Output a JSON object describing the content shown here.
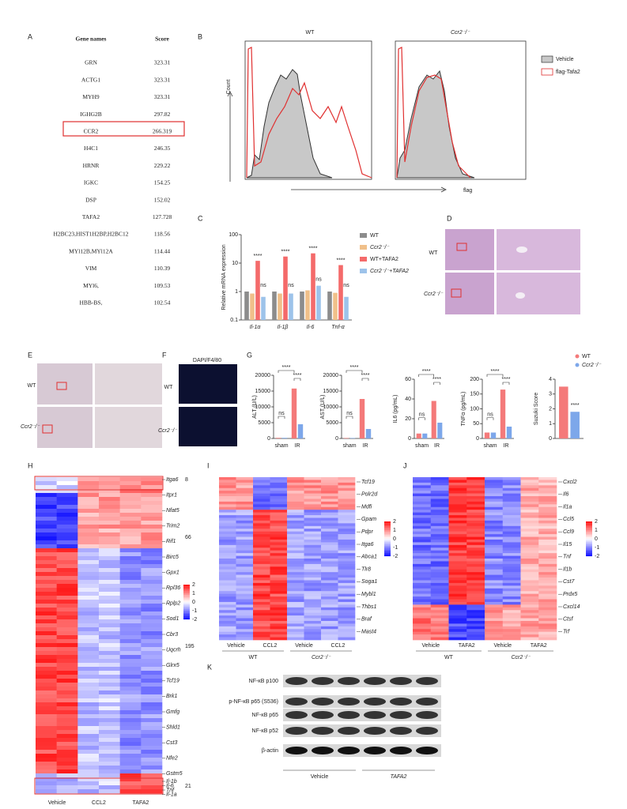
{
  "panel_labels": [
    "A",
    "B",
    "C",
    "D",
    "E",
    "F",
    "G",
    "H",
    "I",
    "J",
    "K"
  ],
  "table": {
    "header": [
      "Gene names",
      "Score"
    ],
    "rows": [
      [
        "GRN",
        "323.31"
      ],
      [
        "ACTG1",
        "323.31"
      ],
      [
        "MYH9",
        "323.31"
      ],
      [
        "IGHG2B",
        "297.82"
      ],
      [
        "CCR2",
        "266.319"
      ],
      [
        "H4C1",
        "246.35"
      ],
      [
        "HRNR",
        "229.22"
      ],
      [
        "IGKC",
        "154.25"
      ],
      [
        "DSP",
        "152.02"
      ],
      [
        "TAFA2",
        "127.728"
      ],
      [
        "H2BC23,HIST1H2BP,H2BC12",
        "118.56"
      ],
      [
        "MYl12B,MYl12A",
        "114.44"
      ],
      [
        "VIM",
        "110.39"
      ],
      [
        "MYl6,",
        "109.53"
      ],
      [
        "HBB-BS,",
        "102.54"
      ]
    ]
  },
  "panel_b": {
    "titles": [
      "WT",
      "Ccr2⁻/⁻"
    ],
    "y_label": "Count",
    "x_label": "flag",
    "legend": [
      "Vehicle",
      "flag-Tafa2"
    ]
  },
  "panel_d": {
    "rows": [
      "WT",
      "Ccr2⁻/⁻"
    ]
  },
  "panel_e": {
    "rows": [
      "WT",
      "Ccr2⁻/⁻"
    ]
  },
  "panel_f": {
    "stain": "DAPI/F4/80",
    "rows": [
      "WT",
      "Ccr2⁻/⁻"
    ]
  },
  "chart_data": [
    {
      "type": "bar",
      "y_label": "Relative mRNA expression",
      "log": true,
      "ylim": [
        0.1,
        100
      ],
      "yticks": [
        0.1,
        1,
        10,
        100
      ],
      "categories": [
        "Il-1α",
        "Il-1β",
        "Il-6",
        "Tnf-α"
      ],
      "series": [
        {
          "name": "WT",
          "color": "#8c8c8c",
          "values": [
            1,
            1,
            1,
            1
          ]
        },
        {
          "name": "Ccr2⁻/⁻",
          "color": "#f0c08a",
          "values": [
            0.85,
            0.85,
            1.1,
            0.9
          ]
        },
        {
          "name": "WT+TAFA2",
          "color": "#f46a6a",
          "values": [
            12,
            17,
            22,
            8.5
          ]
        },
        {
          "name": "Ccr2⁻/⁻+TAFA2",
          "color": "#9dc3ea",
          "values": [
            0.65,
            0.85,
            1.6,
            0.65
          ]
        }
      ],
      "annotations": [
        [
          "****",
          "ns"
        ],
        [
          "****",
          "ns"
        ],
        [
          "****",
          "ns"
        ],
        [
          "****",
          "ns"
        ]
      ]
    },
    {
      "type": "bar",
      "y_label": "ALT (U/L)",
      "ylim": [
        0,
        20000
      ],
      "yticks": [
        0,
        5000,
        10000,
        15000,
        20000
      ],
      "categories": [
        "sham",
        "IR"
      ],
      "series": [
        {
          "name": "WT",
          "color": "#f47a7a",
          "values": [
            200,
            15800
          ]
        },
        {
          "name": "Ccr2⁻/⁻",
          "color": "#7da7ea",
          "values": [
            200,
            4500
          ]
        }
      ],
      "annotations": [
        "ns",
        "****",
        "****"
      ]
    },
    {
      "type": "bar",
      "y_label": "AST (U/L)",
      "ylim": [
        0,
        20000
      ],
      "yticks": [
        0,
        5000,
        10000,
        15000,
        20000
      ],
      "categories": [
        "sham",
        "IR"
      ],
      "series": [
        {
          "name": "WT",
          "color": "#f47a7a",
          "values": [
            150,
            12500
          ]
        },
        {
          "name": "Ccr2⁻/⁻",
          "color": "#7da7ea",
          "values": [
            150,
            3000
          ]
        }
      ],
      "annotations": [
        "ns",
        "****",
        "****"
      ]
    },
    {
      "type": "bar",
      "y_label": "IL6 (pg/mL)",
      "ylim": [
        0,
        60
      ],
      "yticks": [
        0,
        20,
        40,
        60
      ],
      "categories": [
        "sham",
        "IR"
      ],
      "series": [
        {
          "name": "WT",
          "color": "#f47a7a",
          "values": [
            5,
            38
          ]
        },
        {
          "name": "Ccr2⁻/⁻",
          "color": "#7da7ea",
          "values": [
            5,
            16
          ]
        }
      ],
      "annotations": [
        "ns",
        "****",
        "****"
      ]
    },
    {
      "type": "bar",
      "y_label": "TNFα (pg/mL)",
      "ylim": [
        0,
        200
      ],
      "yticks": [
        0,
        50,
        100,
        150,
        200
      ],
      "categories": [
        "sham",
        "IR"
      ],
      "series": [
        {
          "name": "WT",
          "color": "#f47a7a",
          "values": [
            20,
            165
          ]
        },
        {
          "name": "Ccr2⁻/⁻",
          "color": "#7da7ea",
          "values": [
            20,
            40
          ]
        }
      ],
      "annotations": [
        "ns",
        "****",
        "****"
      ]
    },
    {
      "type": "bar",
      "y_label": "Suzuki Score",
      "ylim": [
        0,
        4
      ],
      "yticks": [
        0,
        1,
        2,
        3,
        4
      ],
      "categories": [
        null
      ],
      "series": [
        {
          "name": "WT",
          "color": "#f47a7a",
          "values": [
            3.5
          ]
        },
        {
          "name": "Ccr2⁻/⁻",
          "color": "#7da7ea",
          "values": [
            1.8
          ]
        }
      ],
      "annotations": [
        "****"
      ]
    }
  ],
  "panel_h": {
    "genes": [
      "Itga6",
      "Itpr1",
      "Nfat5",
      "Trim2",
      "Rif1",
      "Birc5",
      "Gpx1",
      "Rpl36",
      "Rplp2",
      "Sod1",
      "Cbr3",
      "Uqcrh",
      "Glrx5",
      "Tcf19",
      "Brk1",
      "Gmfg",
      "Shld1",
      "Cst3",
      "Nfe2",
      "Gstm5",
      "Il-1b",
      "Il-6",
      "Tnf",
      "Il-1a"
    ],
    "counts": [
      "8",
      "66",
      "195",
      "21"
    ],
    "columns": [
      "Vehicle",
      "CCL2",
      "TAFA2"
    ],
    "colorbar": [
      2,
      1,
      0,
      -1,
      -2
    ]
  },
  "panel_i": {
    "genes": [
      "Tcf19",
      "Polr2d",
      "Mdfi",
      "Gpam",
      "Pdpr",
      "Itga6",
      "Abca1",
      "Tlr8",
      "Soga1",
      "Mybl1",
      "Thbs1",
      "Braf",
      "Mast4"
    ],
    "columns": [
      "Vehicle",
      "CCL2",
      "Vehicle",
      "CCL2"
    ],
    "groups": [
      "WT",
      "Ccr2⁻/⁻"
    ],
    "colorbar": [
      2,
      1,
      0,
      -1,
      -2
    ]
  },
  "panel_j": {
    "genes": [
      "Cxcl2",
      "Il6",
      "Il1a",
      "Ccl5",
      "Ccl9",
      "Il15",
      "Tnf",
      "Il1b",
      "Cst7",
      "Prdx5",
      "Cxcl14",
      "Ctsf",
      "Trf"
    ],
    "columns": [
      "Vehicle",
      "TAFA2",
      "Vehicle",
      "TAFA2"
    ],
    "groups": [
      "WT",
      "Ccr2⁻/⁻"
    ],
    "colorbar": [
      2,
      1,
      0,
      -1,
      -2
    ]
  },
  "panel_k": {
    "rows": [
      "NF-κB p100",
      "p-NF-κB p65 (S536)",
      "NF-κB p65",
      "NF-κB p52",
      "β-actin"
    ],
    "groups": [
      "Vehicle",
      "TAFA2"
    ]
  }
}
